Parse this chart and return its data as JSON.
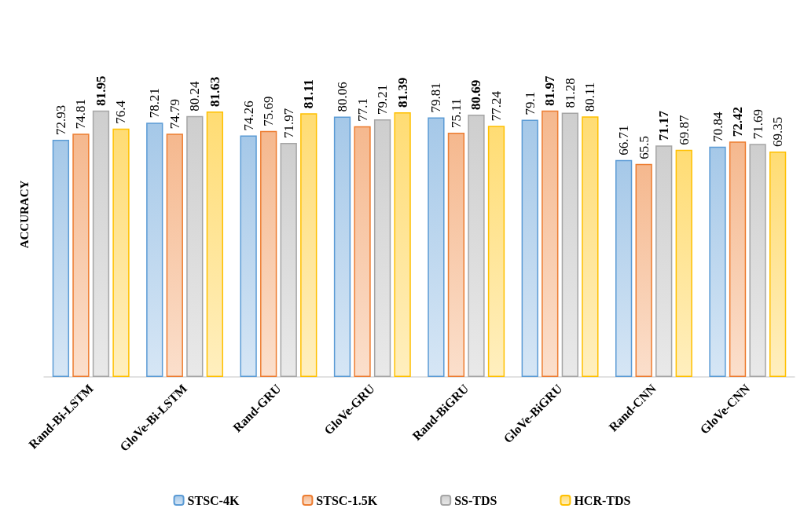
{
  "chart_data": {
    "type": "bar",
    "ylabel": "ACCURACY",
    "categories": [
      "Rand-Bi-LSTM",
      "GloVe-Bi-LSTM",
      "Rand-GRU",
      "GloVe-GRU",
      "Rand-BiGRU",
      "GloVe-BiGRU",
      "Rand-CNN",
      "GloVe-CNN"
    ],
    "series": [
      {
        "name": "STSC-4K",
        "color": "#5b9bd5",
        "values": [
          72.93,
          78.21,
          74.26,
          80.06,
          79.81,
          79.1,
          66.71,
          70.84
        ]
      },
      {
        "name": "STSC-1.5K",
        "color": "#ed7d31",
        "values": [
          74.81,
          74.79,
          75.69,
          77.1,
          75.11,
          81.97,
          65.5,
          72.42
        ]
      },
      {
        "name": "SS-TDS",
        "color": "#a5a5a5",
        "values": [
          81.95,
          80.24,
          71.97,
          79.21,
          80.69,
          81.28,
          71.17,
          71.69
        ]
      },
      {
        "name": "HCR-TDS",
        "color": "#ffc000",
        "values": [
          76.4,
          81.63,
          81.11,
          81.39,
          77.24,
          80.11,
          69.87,
          69.35
        ]
      }
    ],
    "data_labels": true,
    "legend": "bottom",
    "grid": false
  }
}
